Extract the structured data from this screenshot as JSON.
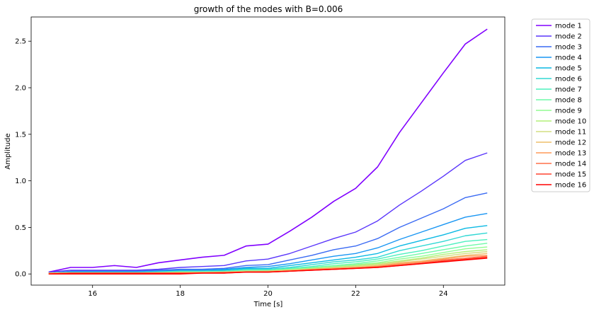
{
  "chart_data": {
    "type": "line",
    "title": "growth of the modes with B=0.006",
    "xlabel": "Time [s]",
    "ylabel": "Amplitude",
    "xlim": [
      14.6,
      25.4
    ],
    "ylim": [
      -0.12,
      2.76
    ],
    "xticks": [
      16,
      18,
      20,
      22,
      24
    ],
    "yticks": [
      0.0,
      0.5,
      1.0,
      1.5,
      2.0,
      2.5
    ],
    "xtick_labels": [
      "16",
      "18",
      "20",
      "22",
      "24"
    ],
    "ytick_labels": [
      "0.0",
      "0.5",
      "1.0",
      "1.5",
      "2.0",
      "2.5"
    ],
    "grid": false,
    "legend_position": "outside-right-top",
    "x": [
      15,
      15.5,
      16,
      16.5,
      17,
      17.5,
      18,
      18.5,
      19,
      19.5,
      20,
      20.5,
      21,
      21.5,
      22,
      22.5,
      23,
      23.5,
      24,
      24.5,
      25
    ],
    "series": [
      {
        "name": "mode 1",
        "color": "#8000ff",
        "values": [
          0.02,
          0.07,
          0.07,
          0.09,
          0.07,
          0.12,
          0.15,
          0.18,
          0.2,
          0.3,
          0.32,
          0.46,
          0.61,
          0.78,
          0.92,
          1.15,
          1.52,
          1.84,
          2.16,
          2.47,
          2.63
        ]
      },
      {
        "name": "mode 2",
        "color": "#5a36fb",
        "values": [
          0.02,
          0.04,
          0.04,
          0.04,
          0.04,
          0.05,
          0.07,
          0.08,
          0.09,
          0.14,
          0.16,
          0.22,
          0.3,
          0.38,
          0.45,
          0.57,
          0.74,
          0.89,
          1.05,
          1.22,
          1.3
        ]
      },
      {
        "name": "mode 3",
        "color": "#3a6af3",
        "values": [
          0.01,
          0.03,
          0.03,
          0.03,
          0.03,
          0.04,
          0.05,
          0.05,
          0.06,
          0.09,
          0.1,
          0.15,
          0.2,
          0.26,
          0.3,
          0.38,
          0.5,
          0.6,
          0.7,
          0.82,
          0.87
        ]
      },
      {
        "name": "mode 4",
        "color": "#1996f3",
        "values": [
          0.01,
          0.02,
          0.02,
          0.02,
          0.02,
          0.03,
          0.04,
          0.04,
          0.05,
          0.07,
          0.08,
          0.11,
          0.15,
          0.19,
          0.22,
          0.28,
          0.37,
          0.45,
          0.53,
          0.61,
          0.65
        ]
      },
      {
        "name": "mode 5",
        "color": "#0cb9e4",
        "values": [
          0.01,
          0.02,
          0.02,
          0.02,
          0.02,
          0.02,
          0.03,
          0.03,
          0.04,
          0.06,
          0.06,
          0.09,
          0.12,
          0.15,
          0.18,
          0.22,
          0.3,
          0.36,
          0.42,
          0.49,
          0.52
        ]
      },
      {
        "name": "mode 6",
        "color": "#32d8d4",
        "values": [
          0.01,
          0.02,
          0.02,
          0.02,
          0.02,
          0.02,
          0.03,
          0.03,
          0.03,
          0.05,
          0.05,
          0.07,
          0.1,
          0.13,
          0.15,
          0.18,
          0.25,
          0.3,
          0.35,
          0.41,
          0.44
        ]
      },
      {
        "name": "mode 7",
        "color": "#4df0be",
        "values": [
          0.01,
          0.01,
          0.01,
          0.01,
          0.01,
          0.02,
          0.02,
          0.02,
          0.03,
          0.04,
          0.04,
          0.06,
          0.08,
          0.11,
          0.13,
          0.16,
          0.21,
          0.25,
          0.3,
          0.35,
          0.37
        ]
      },
      {
        "name": "mode 8",
        "color": "#6ffaa8",
        "values": [
          0.01,
          0.01,
          0.01,
          0.01,
          0.01,
          0.02,
          0.02,
          0.02,
          0.02,
          0.04,
          0.04,
          0.05,
          0.07,
          0.09,
          0.11,
          0.14,
          0.18,
          0.22,
          0.26,
          0.3,
          0.33
        ]
      },
      {
        "name": "mode 9",
        "color": "#92fc92",
        "values": [
          0.01,
          0.01,
          0.01,
          0.01,
          0.01,
          0.01,
          0.02,
          0.02,
          0.02,
          0.03,
          0.03,
          0.05,
          0.06,
          0.08,
          0.1,
          0.12,
          0.16,
          0.19,
          0.23,
          0.27,
          0.29
        ]
      },
      {
        "name": "mode 10",
        "color": "#b4f079",
        "values": [
          0.01,
          0.01,
          0.01,
          0.01,
          0.01,
          0.01,
          0.02,
          0.02,
          0.02,
          0.03,
          0.03,
          0.04,
          0.06,
          0.07,
          0.09,
          0.11,
          0.14,
          0.17,
          0.21,
          0.24,
          0.26
        ]
      },
      {
        "name": "mode 11",
        "color": "#d4dd80",
        "values": [
          0.01,
          0.01,
          0.01,
          0.01,
          0.01,
          0.01,
          0.01,
          0.02,
          0.02,
          0.03,
          0.03,
          0.04,
          0.05,
          0.07,
          0.08,
          0.1,
          0.13,
          0.16,
          0.19,
          0.22,
          0.24
        ]
      },
      {
        "name": "mode 12",
        "color": "#eebf6c",
        "values": [
          0.01,
          0.01,
          0.01,
          0.01,
          0.01,
          0.01,
          0.01,
          0.01,
          0.02,
          0.02,
          0.03,
          0.04,
          0.05,
          0.06,
          0.07,
          0.09,
          0.12,
          0.14,
          0.17,
          0.2,
          0.22
        ]
      },
      {
        "name": "mode 13",
        "color": "#ff9a58",
        "values": [
          0.0,
          0.01,
          0.01,
          0.01,
          0.01,
          0.01,
          0.01,
          0.01,
          0.02,
          0.02,
          0.02,
          0.03,
          0.05,
          0.06,
          0.07,
          0.08,
          0.11,
          0.13,
          0.16,
          0.19,
          0.2
        ]
      },
      {
        "name": "mode 14",
        "color": "#ff7048",
        "values": [
          0.0,
          0.01,
          0.01,
          0.01,
          0.01,
          0.01,
          0.01,
          0.01,
          0.01,
          0.02,
          0.02,
          0.03,
          0.04,
          0.05,
          0.06,
          0.08,
          0.1,
          0.12,
          0.15,
          0.17,
          0.19
        ]
      },
      {
        "name": "mode 15",
        "color": "#ff4530",
        "values": [
          0.0,
          0.01,
          0.01,
          0.01,
          0.01,
          0.01,
          0.01,
          0.01,
          0.01,
          0.02,
          0.02,
          0.03,
          0.04,
          0.05,
          0.06,
          0.07,
          0.09,
          0.11,
          0.14,
          0.16,
          0.18
        ]
      },
      {
        "name": "mode 16",
        "color": "#ff0000",
        "values": [
          0.0,
          0.0,
          0.0,
          0.0,
          0.0,
          0.0,
          0.0,
          0.01,
          0.01,
          0.02,
          0.02,
          0.03,
          0.04,
          0.05,
          0.06,
          0.07,
          0.09,
          0.11,
          0.13,
          0.15,
          0.17
        ]
      }
    ]
  }
}
